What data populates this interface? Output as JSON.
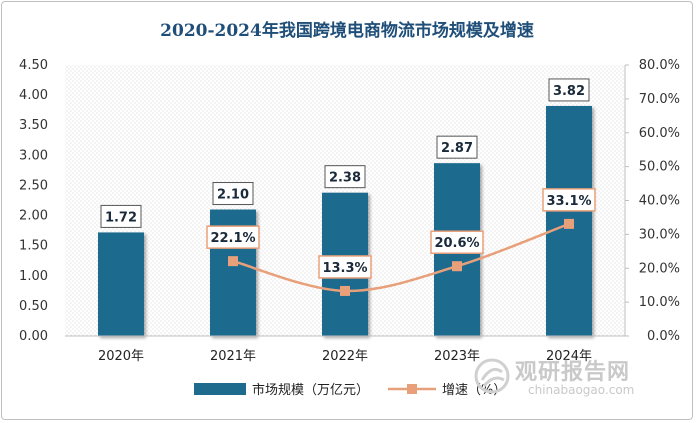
{
  "chart_data": {
    "type": "bar+line",
    "title": "2020-2024年我国跨境电商物流市场规模及增速",
    "categories": [
      "2020年",
      "2021年",
      "2022年",
      "2023年",
      "2024年"
    ],
    "series": [
      {
        "name": "市场规模（万亿元）",
        "type": "bar",
        "axis": "left",
        "values": [
          1.72,
          2.1,
          2.38,
          2.87,
          3.82
        ],
        "labels": [
          "1.72",
          "2.10",
          "2.38",
          "2.87",
          "3.82"
        ],
        "color": "#1f6b8e"
      },
      {
        "name": "增速（%）",
        "type": "line",
        "axis": "right",
        "values": [
          null,
          22.1,
          13.3,
          20.6,
          33.1
        ],
        "labels": [
          "",
          "22.1%",
          "13.3%",
          "20.6%",
          "33.1%"
        ],
        "color": "#e8a07a"
      }
    ],
    "y_left": {
      "min": 0,
      "max": 4.5,
      "step": 0.5,
      "ticks": [
        "0.00",
        "0.50",
        "1.00",
        "1.50",
        "2.00",
        "2.50",
        "3.00",
        "3.50",
        "4.00",
        "4.50"
      ]
    },
    "y_right": {
      "min": 0,
      "max": 80,
      "step": 10,
      "ticks": [
        "0.0%",
        "10.0%",
        "20.0%",
        "30.0%",
        "40.0%",
        "50.0%",
        "60.0%",
        "70.0%",
        "80.0%"
      ]
    },
    "legend_position": "bottom"
  },
  "watermark": {
    "name": "观研报告网",
    "url": "chinabaogao.com"
  }
}
